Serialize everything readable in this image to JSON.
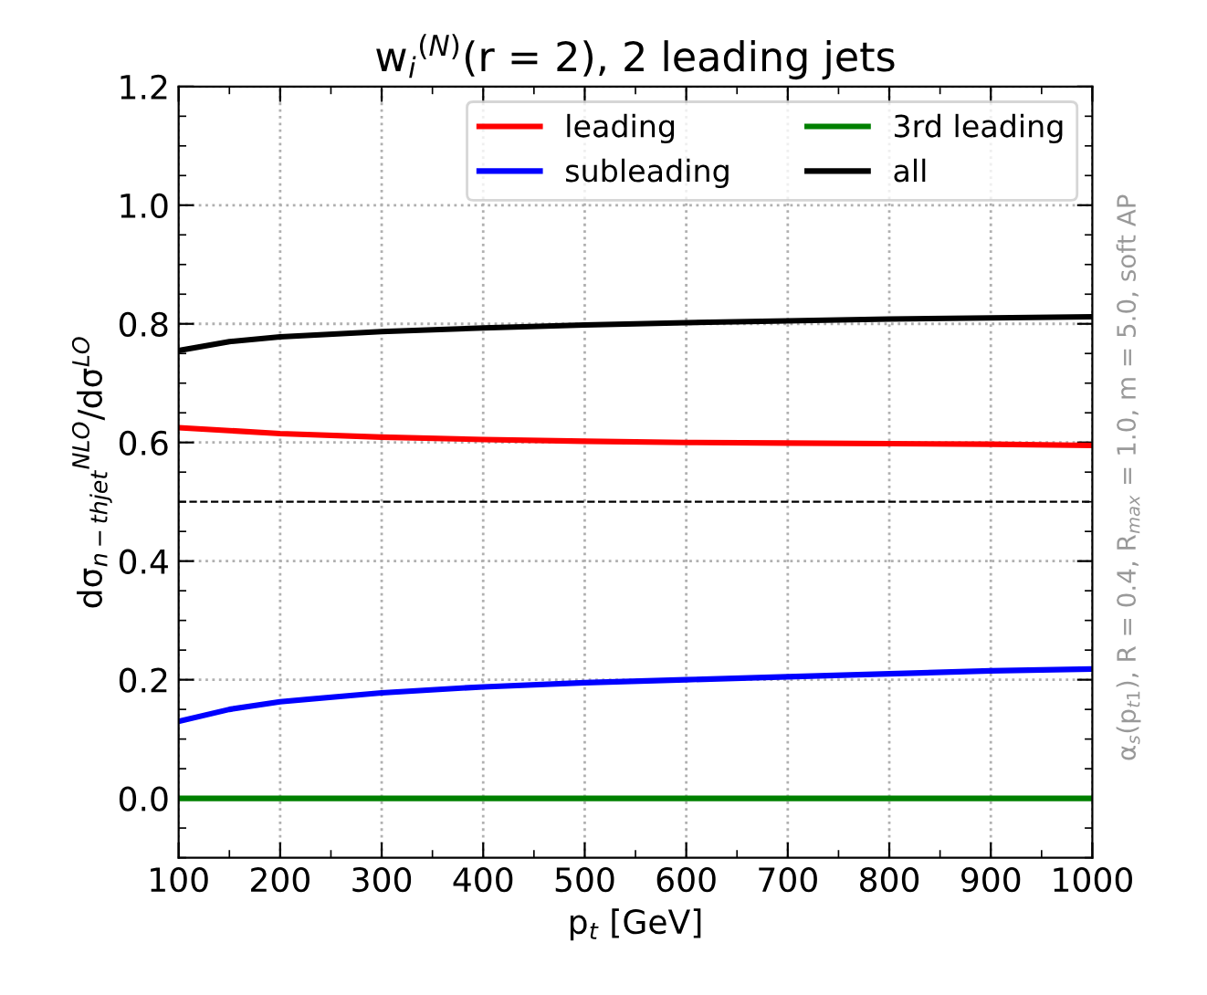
{
  "chart_data": {
    "type": "line",
    "title": "w$_{i}$$^{(N)}$(r = 2), 2 leading jets",
    "xlabel": "p$_{t}$ [GeV]",
    "ylabel": "dσ$_{n−thjet}$$^{NLO}$/dσ$^{LO}$",
    "annotations": [
      "α$_{s}$(p$_{t1}$), R = 0.4, R$_{max}$ = 1.0, m = 5.0, soft AP"
    ],
    "x": [
      100,
      150,
      200,
      300,
      400,
      500,
      600,
      700,
      800,
      900,
      1000
    ],
    "series": [
      {
        "name": "leading",
        "color": "#ff0000",
        "values": [
          0.625,
          0.62,
          0.615,
          0.609,
          0.605,
          0.602,
          0.6,
          0.599,
          0.598,
          0.597,
          0.595
        ]
      },
      {
        "name": "subleading",
        "color": "#0000ff",
        "values": [
          0.13,
          0.15,
          0.163,
          0.178,
          0.188,
          0.195,
          0.2,
          0.205,
          0.21,
          0.215,
          0.218
        ]
      },
      {
        "name": "3rd leading",
        "color": "#008000",
        "values": [
          0,
          0,
          0,
          0,
          0,
          0,
          0,
          0,
          0,
          0,
          0
        ]
      },
      {
        "name": "all",
        "color": "#000000",
        "values": [
          0.755,
          0.77,
          0.778,
          0.787,
          0.793,
          0.798,
          0.802,
          0.805,
          0.808,
          0.81,
          0.812
        ]
      }
    ],
    "xlim": [
      100,
      1000
    ],
    "ylim": [
      -0.1,
      1.2
    ],
    "xticks": [
      100,
      200,
      300,
      400,
      500,
      600,
      700,
      800,
      900,
      1000
    ],
    "yticks": [
      {
        "value": 0,
        "label": "0.0"
      },
      {
        "value": 0.2,
        "label": "0.2"
      },
      {
        "value": 0.4,
        "label": "0.4"
      },
      {
        "value": 0.6,
        "label": "0.6"
      },
      {
        "value": 0.8,
        "label": "0.8"
      },
      {
        "value": 1.0,
        "label": "1.0"
      },
      {
        "value": 1.2,
        "label": "1.2"
      }
    ],
    "ref_lines": [
      {
        "axis": "y",
        "value": 0.5,
        "label": null,
        "color": "#000000",
        "line_style": "dashed"
      }
    ],
    "grid": true,
    "legend": "top right",
    "line_style": "solid",
    "marker": "none"
  }
}
